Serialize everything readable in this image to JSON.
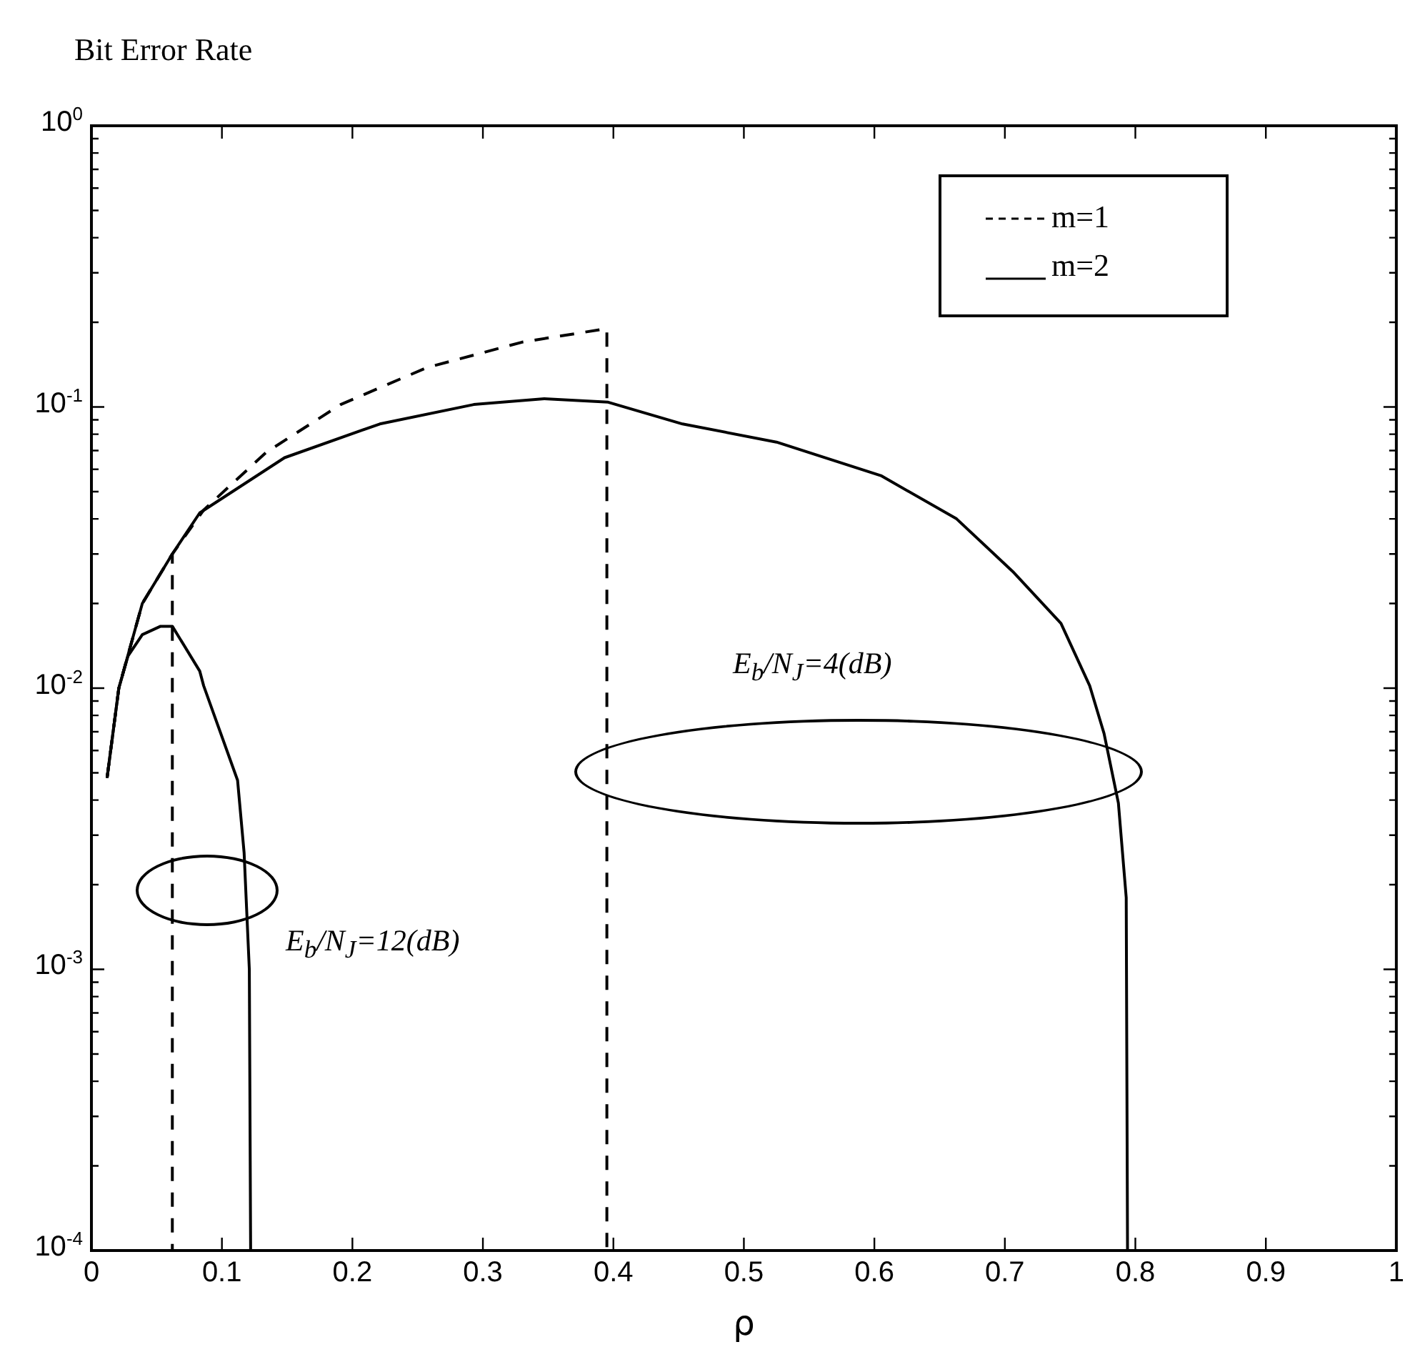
{
  "chart_data": {
    "type": "line",
    "title": "Bit Error Rate",
    "xlabel": "ρ",
    "xlim": [
      0,
      1
    ],
    "xticks": [
      0,
      0.1,
      0.2,
      0.3,
      0.4,
      0.5,
      0.6,
      0.7,
      0.8,
      0.9,
      1
    ],
    "ylim": [
      0.0001,
      1
    ],
    "log": "y",
    "yticks": [
      {
        "value": 0.0001,
        "label": "10$^{-4}$"
      },
      {
        "value": 0.0002,
        "label": null
      },
      {
        "value": 0.0003,
        "label": null
      },
      {
        "value": 0.0004,
        "label": null
      },
      {
        "value": 0.0005,
        "label": null
      },
      {
        "value": 0.0006,
        "label": null
      },
      {
        "value": 0.0007,
        "label": null
      },
      {
        "value": 0.0008,
        "label": null
      },
      {
        "value": 0.0009,
        "label": null
      },
      {
        "value": 0.001,
        "label": "10$^{-3}$"
      },
      {
        "value": 0.002,
        "label": null
      },
      {
        "value": 0.003,
        "label": null
      },
      {
        "value": 0.004,
        "label": null
      },
      {
        "value": 0.005,
        "label": null
      },
      {
        "value": 0.006,
        "label": null
      },
      {
        "value": 0.007,
        "label": null
      },
      {
        "value": 0.008,
        "label": null
      },
      {
        "value": 0.009,
        "label": null
      },
      {
        "value": 0.01,
        "label": "10$^{-2}$"
      },
      {
        "value": 0.02,
        "label": null
      },
      {
        "value": 0.03,
        "label": null
      },
      {
        "value": 0.04,
        "label": null
      },
      {
        "value": 0.05,
        "label": null
      },
      {
        "value": 0.06,
        "label": null
      },
      {
        "value": 0.07,
        "label": null
      },
      {
        "value": 0.08,
        "label": null
      },
      {
        "value": 0.09,
        "label": null
      },
      {
        "value": 0.1,
        "label": "10$^{-1}$"
      },
      {
        "value": 0.2,
        "label": null
      },
      {
        "value": 0.3,
        "label": null
      },
      {
        "value": 0.4,
        "label": null
      },
      {
        "value": 0.5,
        "label": null
      },
      {
        "value": 0.6,
        "label": null
      },
      {
        "value": 0.7,
        "label": null
      },
      {
        "value": 0.8,
        "label": null
      },
      {
        "value": 0.9,
        "label": null
      },
      {
        "value": 1,
        "label": "10$^{0}$"
      }
    ],
    "grid": false,
    "legend": "top right",
    "marker": "none",
    "series": [
      {
        "name": "m=1",
        "color": "#000000",
        "line_style": "dashed",
        "x": [
          0.012,
          0.021,
          0.039,
          0.062,
          0.086,
          0.134,
          0.191,
          0.257,
          0.33,
          0.395,
          0.395
        ],
        "values": [
          0.0048,
          0.01,
          0.02,
          0.03,
          0.043,
          0.069,
          0.102,
          0.138,
          0.17,
          0.19,
          0.0001
        ]
      },
      {
        "color": "#000000",
        "line_style": "dashed",
        "x": [
          0.012,
          0.021,
          0.039,
          0.062,
          0.062
        ],
        "values": [
          0.0048,
          0.01,
          0.02,
          0.03,
          0.0001
        ]
      },
      {
        "name": "m=2",
        "color": "#000000",
        "line_style": "solid",
        "x": [
          0.012,
          0.021,
          0.039,
          0.062,
          0.083,
          0.148,
          0.221,
          0.293,
          0.347,
          0.396,
          0.453,
          0.525,
          0.605,
          0.663,
          0.706,
          0.743,
          0.765,
          0.776,
          0.787,
          0.793,
          0.794
        ],
        "values": [
          0.0048,
          0.01,
          0.02,
          0.03,
          0.042,
          0.066,
          0.087,
          0.102,
          0.107,
          0.104,
          0.087,
          0.075,
          0.057,
          0.04,
          0.026,
          0.017,
          0.0102,
          0.0069,
          0.0039,
          0.0018,
          0.0001
        ]
      },
      {
        "color": "#000000",
        "line_style": "solid",
        "x": [
          0.012,
          0.021,
          0.028,
          0.039,
          0.053,
          0.062,
          0.083,
          0.086,
          0.112,
          0.117,
          0.121,
          0.122
        ],
        "values": [
          0.0048,
          0.01,
          0.013,
          0.0155,
          0.0166,
          0.0166,
          0.0115,
          0.0102,
          0.0047,
          0.0026,
          0.001,
          0.0001
        ]
      }
    ],
    "annotations": [
      "E$_{b}$/N$_{J}$=4(dB)",
      "E$_{b}$/N$_{J}$=12(dB)"
    ]
  }
}
